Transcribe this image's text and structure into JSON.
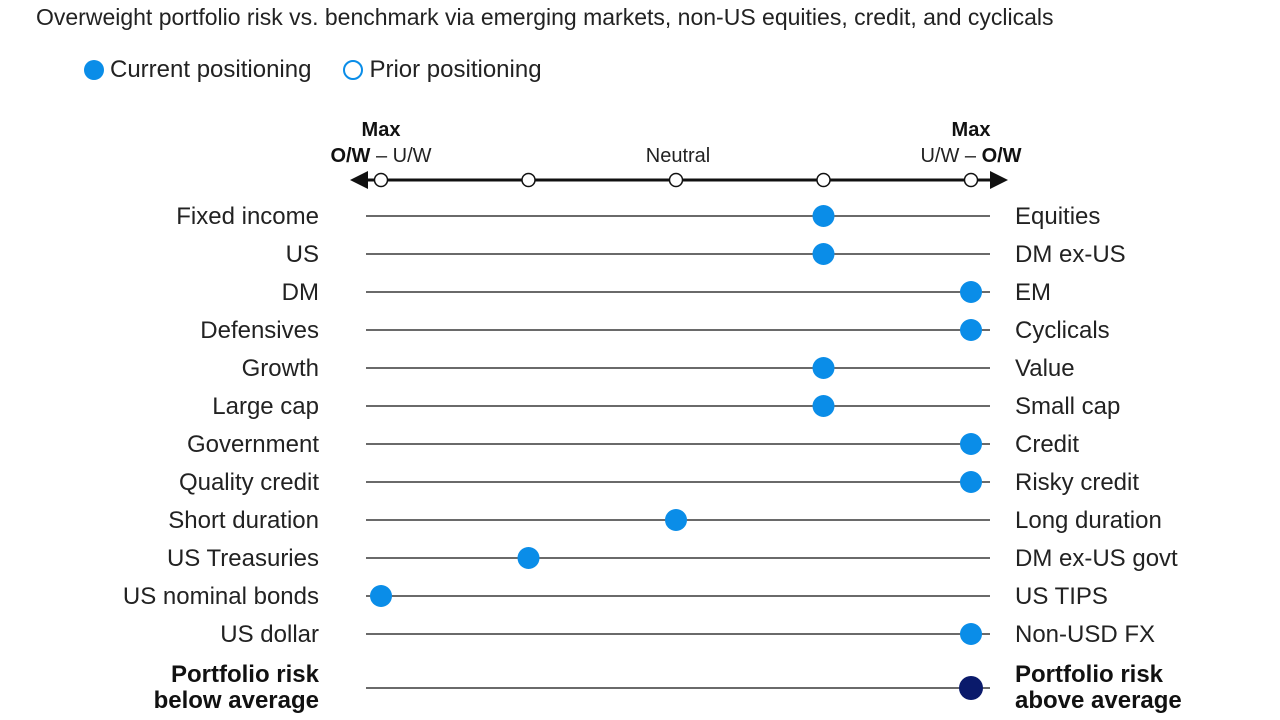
{
  "colors": {
    "current": "#0a8de8",
    "portfolio": "#0a1a6b",
    "line": "#111111"
  },
  "legend": {
    "current_label": "Current positioning",
    "prior_label": "Prior positioning"
  },
  "chart_data": {
    "type": "scatter",
    "title": "Overweight portfolio risk vs. benchmark via emerging markets, non-US equities, credit, and cyclicals",
    "scale": {
      "levels": 5,
      "left_max_top": "Max",
      "left_max_bottom_bold": "O/W",
      "left_max_bottom_rest": " – U/W",
      "neutral": "Neutral",
      "right_max_top": "Max",
      "right_max_bottom_rest": "U/W – ",
      "right_max_bottom_bold": "O/W"
    },
    "rows": [
      {
        "left": "Fixed income",
        "right": "Equities",
        "current": 4
      },
      {
        "left": "US",
        "right": "DM ex-US",
        "current": 4
      },
      {
        "left": "DM",
        "right": "EM",
        "current": 5
      },
      {
        "left": "Defensives",
        "right": "Cyclicals",
        "current": 5
      },
      {
        "left": "Growth",
        "right": "Value",
        "current": 4
      },
      {
        "left": "Large cap",
        "right": "Small cap",
        "current": 4
      },
      {
        "left": "Government",
        "right": "Credit",
        "current": 5
      },
      {
        "left": "Quality credit",
        "right": "Risky credit",
        "current": 5
      },
      {
        "left": "Short duration",
        "right": "Long duration",
        "current": 3
      },
      {
        "left": "US Treasuries",
        "right": "DM ex-US govt",
        "current": 2
      },
      {
        "left": "US nominal bonds",
        "right": "US TIPS",
        "current": 1
      },
      {
        "left": "US dollar",
        "right": "Non-USD FX",
        "current": 5
      }
    ],
    "summary": {
      "left_line1": "Portfolio risk",
      "left_line2": "below average",
      "right_line1": "Portfolio risk",
      "right_line2": "above average",
      "current": 5
    }
  }
}
